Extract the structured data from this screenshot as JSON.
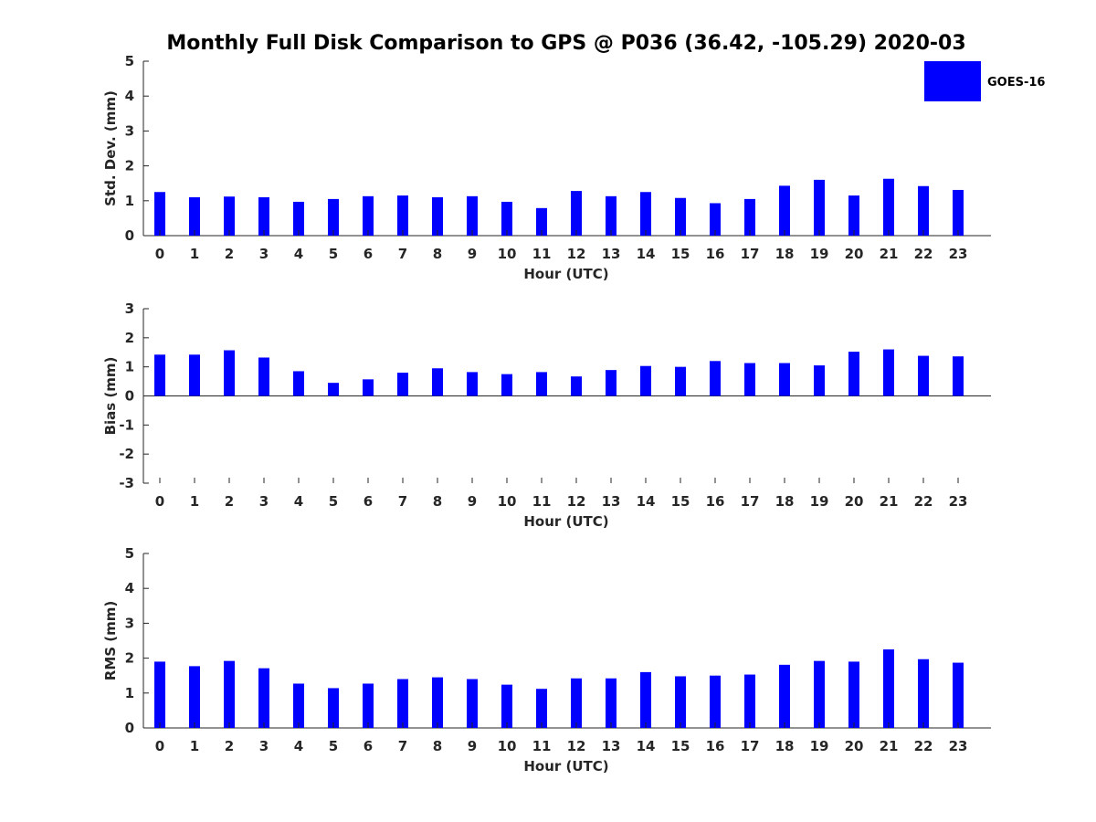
{
  "title": "Monthly Full Disk Comparison to GPS @ P036 (36.42, -105.29) 2020-03",
  "legend": {
    "label": "GOES-16",
    "placement": "top-right",
    "color": "#0000ff"
  },
  "chart_data": [
    {
      "type": "bar",
      "xlabel": "Hour (UTC)",
      "ylabel": "Std. Dev. (mm)",
      "ylim": [
        0,
        5
      ],
      "yticks": [
        0,
        1,
        2,
        3,
        4,
        5
      ],
      "grid": false,
      "categories": [
        "0",
        "1",
        "2",
        "3",
        "4",
        "5",
        "6",
        "7",
        "8",
        "9",
        "10",
        "11",
        "12",
        "13",
        "14",
        "15",
        "16",
        "17",
        "18",
        "19",
        "20",
        "21",
        "22",
        "23"
      ],
      "series": [
        {
          "name": "GOES-16",
          "color": "#0000ff",
          "values": [
            1.25,
            1.1,
            1.12,
            1.1,
            0.97,
            1.05,
            1.13,
            1.15,
            1.1,
            1.13,
            0.97,
            0.79,
            1.28,
            1.13,
            1.25,
            1.08,
            0.93,
            1.05,
            1.43,
            1.6,
            1.15,
            1.63,
            1.42,
            1.31
          ]
        }
      ]
    },
    {
      "type": "bar",
      "xlabel": "Hour (UTC)",
      "ylabel": "Bias (mm)",
      "ylim": [
        -3,
        3
      ],
      "yticks": [
        -3,
        -2,
        -1,
        0,
        1,
        2,
        3
      ],
      "grid": false,
      "categories": [
        "0",
        "1",
        "2",
        "3",
        "4",
        "5",
        "6",
        "7",
        "8",
        "9",
        "10",
        "11",
        "12",
        "13",
        "14",
        "15",
        "16",
        "17",
        "18",
        "19",
        "20",
        "21",
        "22",
        "23"
      ],
      "series": [
        {
          "name": "GOES-16",
          "color": "#0000ff",
          "values": [
            1.42,
            1.42,
            1.57,
            1.32,
            0.85,
            0.45,
            0.57,
            0.8,
            0.95,
            0.82,
            0.75,
            0.82,
            0.67,
            0.89,
            1.03,
            1.0,
            1.2,
            1.13,
            1.13,
            1.05,
            1.52,
            1.6,
            1.38,
            1.36
          ]
        }
      ]
    },
    {
      "type": "bar",
      "xlabel": "Hour (UTC)",
      "ylabel": "RMS (mm)",
      "ylim": [
        0,
        5
      ],
      "yticks": [
        0,
        1,
        2,
        3,
        4,
        5
      ],
      "grid": false,
      "categories": [
        "0",
        "1",
        "2",
        "3",
        "4",
        "5",
        "6",
        "7",
        "8",
        "9",
        "10",
        "11",
        "12",
        "13",
        "14",
        "15",
        "16",
        "17",
        "18",
        "19",
        "20",
        "21",
        "22",
        "23"
      ],
      "series": [
        {
          "name": "GOES-16",
          "color": "#0000ff",
          "values": [
            1.9,
            1.77,
            1.92,
            1.71,
            1.27,
            1.14,
            1.27,
            1.4,
            1.45,
            1.4,
            1.24,
            1.12,
            1.42,
            1.42,
            1.6,
            1.48,
            1.5,
            1.53,
            1.81,
            1.92,
            1.9,
            2.25,
            1.97,
            1.87
          ]
        }
      ]
    }
  ]
}
